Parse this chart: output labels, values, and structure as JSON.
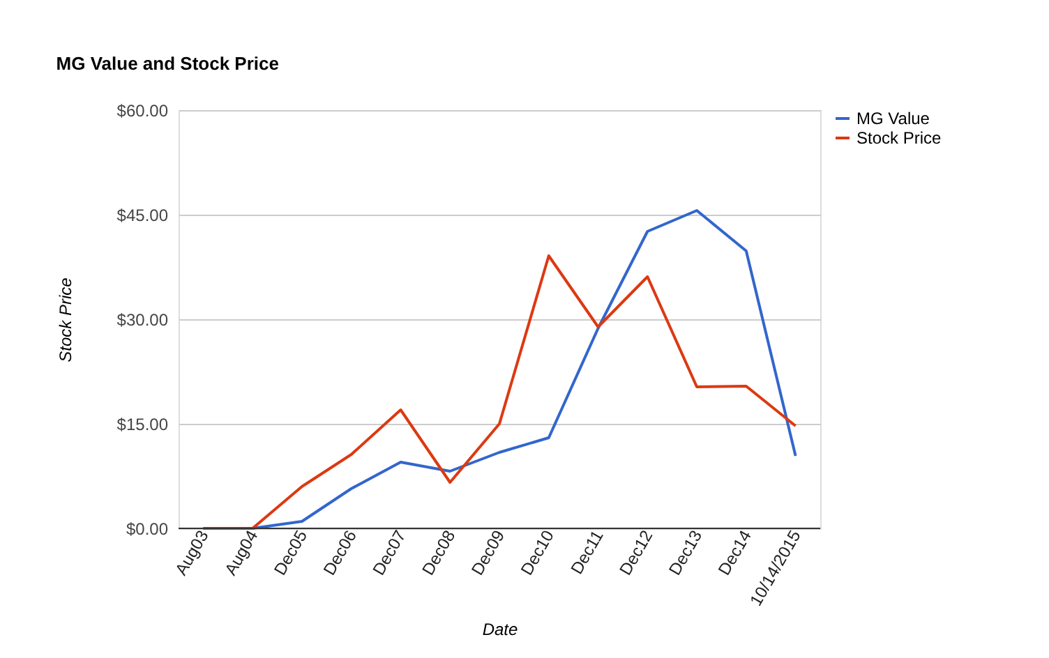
{
  "chart_data": {
    "type": "line",
    "title": "MG Value and Stock Price",
    "xlabel": "Date",
    "ylabel": "Stock Price",
    "categories": [
      "Aug03",
      "Aug04",
      "Dec05",
      "Dec06",
      "Dec07",
      "Dec08",
      "Dec09",
      "Dec10",
      "Dec11",
      "Dec12",
      "Dec13",
      "Dec14",
      "10/14/2015"
    ],
    "series": [
      {
        "name": "MG Value",
        "color": "#3366cc",
        "values": [
          0,
          0,
          1.0,
          5.7,
          9.5,
          8.2,
          10.9,
          13.0,
          28.7,
          42.6,
          45.6,
          39.8,
          10.4
        ]
      },
      {
        "name": "Stock Price",
        "color": "#dc3912",
        "values": [
          0,
          0,
          6.0,
          10.6,
          17.0,
          6.6,
          15.0,
          39.1,
          28.9,
          36.1,
          20.3,
          20.4,
          14.7
        ]
      }
    ],
    "ylim": [
      0,
      60
    ],
    "yticks": [
      {
        "value": 0,
        "label": "$0.00"
      },
      {
        "value": 15,
        "label": "$15.00"
      },
      {
        "value": 30,
        "label": "$30.00"
      },
      {
        "value": 45,
        "label": "$45.00"
      },
      {
        "value": 60,
        "label": "$60.00"
      }
    ],
    "grid": "y",
    "legend": "top right",
    "marker": "none",
    "line_style": "solid"
  }
}
